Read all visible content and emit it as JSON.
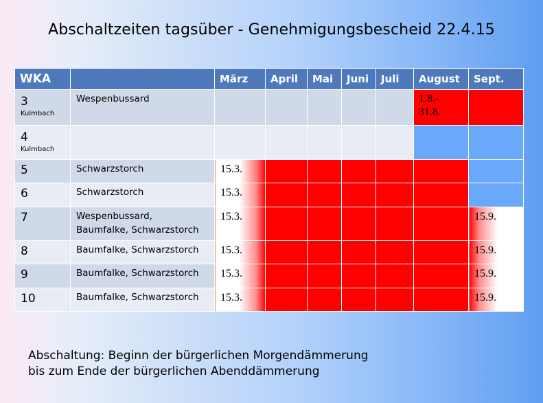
{
  "title": "Abschaltzeiten tagsüber - Genehmigungsbescheid 22.4.15",
  "table": {
    "headers": [
      "WKA",
      "",
      "März",
      "April",
      "Mai",
      "Juni",
      "Juli",
      "August",
      "Sept."
    ],
    "rows": [
      {
        "wka": "3",
        "site": "Kulmbach",
        "species_line1": "Wespenbussard",
        "species_line2": "",
        "start": "",
        "end": "",
        "august_note": "1.8.-\n31.8."
      },
      {
        "wka": "4",
        "site": "Kulmbach",
        "species_line1": "",
        "species_line2": "",
        "start": "",
        "end": ""
      },
      {
        "wka": "5",
        "site": "",
        "species_line1": "Schwarzstorch",
        "species_line2": "",
        "start": "15.3.",
        "end": ""
      },
      {
        "wka": "6",
        "site": "",
        "species_line1": "Schwarzstorch",
        "species_line2": "",
        "start": "15.3.",
        "end": ""
      },
      {
        "wka": "7",
        "site": "",
        "species_line1": "Wespenbussard,",
        "species_line2": "Baumfalke, Schwarzstorch",
        "start": "15.3.",
        "end": "15.9."
      },
      {
        "wka": "8",
        "site": "",
        "species_line1": "Baumfalke, Schwarzstorch",
        "species_line2": "",
        "start": "15.3.",
        "end": "15.9."
      },
      {
        "wka": "9",
        "site": "",
        "species_line1": "Baumfalke, Schwarzstorch",
        "species_line2": "",
        "start": "15.3.",
        "end": "15.9."
      },
      {
        "wka": "10",
        "site": "",
        "species_line1": "Baumfalke, Schwarzstorch",
        "species_line2": "",
        "start": "15.3.",
        "end": "15.9."
      }
    ]
  },
  "footer": {
    "line1": "Abschaltung: Beginn der bürgerlichen Morgendämmerung",
    "line2": "bis zum Ende der bürgerlichen Abenddämmerung"
  },
  "colors": {
    "header_blue": "#4e79bd",
    "shutdown_red": "#ff0000",
    "unrestricted_blue": "#6aa8fa"
  }
}
